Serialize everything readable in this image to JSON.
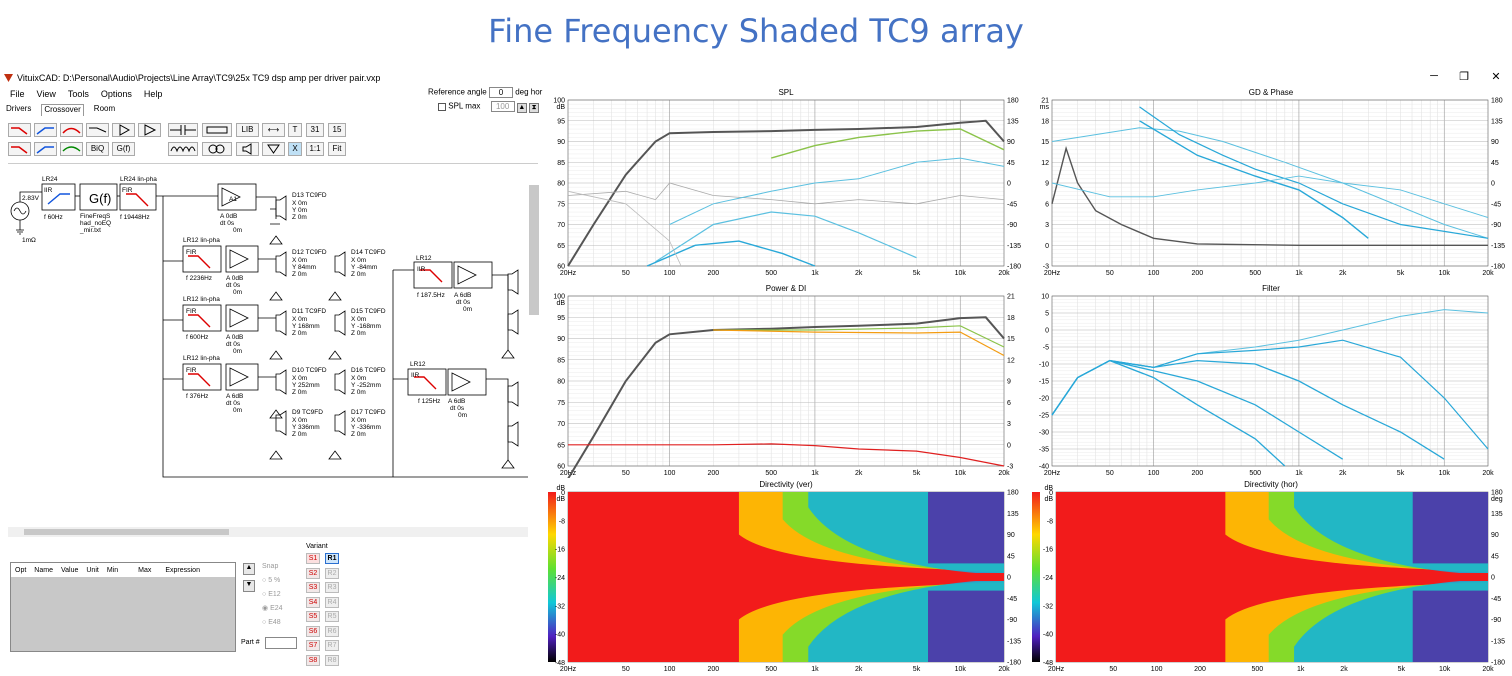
{
  "headline": "Fine Frequency Shaded TC9 array",
  "window": {
    "title": "VituixCAD: D:\\Personal\\Audio\\Projects\\Line Array\\TC9\\25x TC9 dsp amp per driver pair.vxp",
    "minimize": "─",
    "restore": "❐",
    "close": "✕"
  },
  "menu": [
    "File",
    "View",
    "Tools",
    "Options",
    "Help"
  ],
  "tabs": [
    "Drivers",
    "Crossover",
    "Room"
  ],
  "reference": {
    "label": "Reference angle",
    "value": "0",
    "unit": "deg hor",
    "spl_max": "SPL max",
    "spl_value": "100"
  },
  "toolbar": {
    "lib": "LIB",
    "t": "T",
    "n31": "31",
    "n15": "15",
    "biq": "BiQ",
    "gf": "G(f)",
    "x": "X",
    "ratio": "1:1",
    "fit": "Fit"
  },
  "schematic": {
    "source": {
      "v": "2.83V",
      "r": "1mΩ"
    },
    "blocks": [
      {
        "title": "LR24",
        "type": "IIR",
        "f": "f  60Hz"
      },
      {
        "title": "",
        "type": "G(f)",
        "f": "FineFreqS\nhad_noEQ\n_mir.txt"
      },
      {
        "title": "LR24 lin-pha",
        "type": "FIR",
        "f": "f  19448Hz"
      }
    ],
    "amp_main": {
      "label": "A1",
      "vals": "A  0dB\ndt 0s\n0m"
    },
    "rows": [
      {
        "title": "LR12 lin-pha",
        "type": "FIR",
        "f": "f  2236Hz",
        "amp": "A  0dB\ndt 0s\n0m"
      },
      {
        "title": "LR12 lin-pha",
        "type": "FIR",
        "f": "f  600Hz",
        "amp": "A  0dB\ndt 0s\n0m"
      },
      {
        "title": "LR12 lin-pha",
        "type": "FIR",
        "f": "f  376Hz",
        "amp": "A  6dB\ndt 0s\n0m"
      }
    ],
    "rightrows": [
      {
        "title": "LR12",
        "type": "IIR",
        "f": "f  187.5Hz",
        "amp": "A  6dB\ndt 0s\n0m"
      },
      {
        "title": "LR12",
        "type": "IIR",
        "f": "f  125Hz",
        "amp": "A  6dB\ndt 0s\n0m"
      }
    ],
    "drivers": [
      {
        "name": "D13 TC9FD",
        "pos": "X 0m\nY 0m\nZ 0m"
      },
      {
        "name": "D12 TC9FD",
        "pos": "X 0m\nY 84mm\nZ 0m"
      },
      {
        "name": "D14 TC9FD",
        "pos": "X 0m\nY -84mm\nZ 0m"
      },
      {
        "name": "D11 TC9FD",
        "pos": "X 0m\nY 168mm\nZ 0m"
      },
      {
        "name": "D15 TC9FD",
        "pos": "X 0m\nY -168mm\nZ 0m"
      },
      {
        "name": "D10 TC9FD",
        "pos": "X 0m\nY 252mm\nZ 0m"
      },
      {
        "name": "D16 TC9FD",
        "pos": "X 0m\nY -252mm\nZ 0m"
      },
      {
        "name": "D9 TC9FD",
        "pos": "X 0m\nY 336mm\nZ 0m"
      },
      {
        "name": "D17 TC9FD",
        "pos": "X 0m\nY -336mm\nZ 0m"
      }
    ]
  },
  "optimizer": {
    "columns": [
      "Opt",
      "Name",
      "Value",
      "Unit",
      "Min",
      "Max",
      "Expression"
    ],
    "snap": [
      "Snap",
      "5 %",
      "E12",
      "E24",
      "E48"
    ],
    "part": "Part #"
  },
  "variant": {
    "label": "Variant",
    "s": [
      "S1",
      "S2",
      "S3",
      "S4",
      "S5",
      "S6",
      "S7",
      "S8"
    ],
    "r": [
      "R1",
      "R2",
      "R3",
      "R4",
      "R5",
      "R6",
      "R7",
      "R8"
    ]
  },
  "plots": {
    "xticks": [
      "20Hz",
      "50",
      "100",
      "200",
      "500",
      "1k",
      "2k",
      "5k",
      "10k",
      "20k"
    ],
    "spl": {
      "title": "SPL",
      "yl": [
        "100",
        "95",
        "90",
        "85",
        "80",
        "75",
        "70",
        "65",
        "60"
      ],
      "yunit": "dB",
      "yr": [
        "180",
        "135",
        "90",
        "45",
        "0",
        "-45",
        "-90",
        "-135",
        "-180"
      ]
    },
    "gd": {
      "title": "GD & Phase",
      "yl": [
        "21",
        "18",
        "15",
        "12",
        "9",
        "6",
        "3",
        "0",
        "-3"
      ],
      "yunit": "ms",
      "yr": [
        "180",
        "135",
        "90",
        "45",
        "0",
        "-45",
        "-90",
        "-135",
        "-180"
      ]
    },
    "power": {
      "title": "Power & DI",
      "yl": [
        "100",
        "95",
        "90",
        "85",
        "80",
        "75",
        "70",
        "65",
        "60"
      ],
      "yunit": "dB",
      "yr": [
        "21",
        "18",
        "15",
        "12",
        "9",
        "6",
        "3",
        "0",
        "-3"
      ]
    },
    "filter": {
      "title": "Filter",
      "yl": [
        "10",
        "5",
        "0",
        "-5",
        "-10",
        "-15",
        "-20",
        "-25",
        "-30",
        "-35",
        "-40"
      ]
    },
    "dirv": {
      "title": "Directivity (ver)",
      "scale": [
        "0",
        "-8",
        "-16",
        "-24",
        "-32",
        "-40",
        "-48"
      ],
      "yunit": "dB",
      "yr": [
        "180",
        "135",
        "90",
        "45",
        "0",
        "-45",
        "-90",
        "-135",
        "-180"
      ]
    },
    "dirh": {
      "title": "Directivity (hor)",
      "scale": [
        "0",
        "-8",
        "-16",
        "-24",
        "-32",
        "-40",
        "-48"
      ],
      "yunit": "dB",
      "yr": [
        "180",
        "135",
        "90",
        "45",
        "0",
        "-45",
        "-90",
        "-135",
        "-180"
      ],
      "yunit_r": "deg"
    }
  }
}
